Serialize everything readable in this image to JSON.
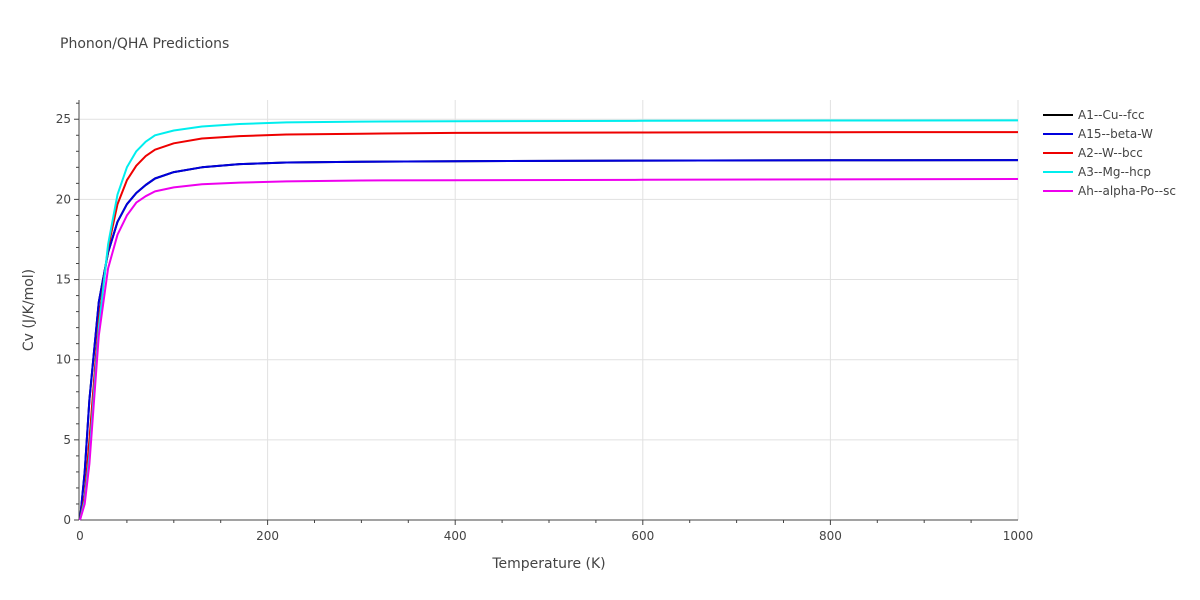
{
  "chart_data": {
    "type": "line",
    "title": "Phonon/QHA Predictions",
    "xlabel": "Temperature (K)",
    "ylabel": "Cv (J/K/mol)",
    "xlim": [
      0,
      1000
    ],
    "ylim": [
      0,
      26.2
    ],
    "xticks": [
      0,
      200,
      400,
      600,
      800,
      1000
    ],
    "yticks": [
      0,
      5,
      10,
      15,
      20,
      25
    ],
    "grid": true,
    "legend_position": "top-right",
    "series": [
      {
        "name": "A1--Cu--fcc",
        "color": "#000000",
        "x": [
          0,
          5,
          10,
          20,
          30,
          40,
          50,
          60,
          70,
          80,
          100,
          130,
          170,
          220,
          300,
          400,
          600,
          800,
          1000
        ],
        "y": [
          0,
          3.0,
          7.5,
          13.6,
          16.7,
          18.6,
          19.7,
          20.4,
          20.9,
          21.3,
          21.7,
          22.0,
          22.2,
          22.3,
          22.35,
          22.38,
          22.42,
          22.44,
          22.45
        ]
      },
      {
        "name": "A15--beta-W",
        "color": "#0000dd",
        "x": [
          0,
          5,
          10,
          20,
          30,
          40,
          50,
          60,
          70,
          80,
          100,
          130,
          170,
          220,
          300,
          400,
          600,
          800,
          1000
        ],
        "y": [
          0,
          3.0,
          7.5,
          13.6,
          16.7,
          18.6,
          19.7,
          20.4,
          20.9,
          21.3,
          21.7,
          22.0,
          22.2,
          22.3,
          22.35,
          22.38,
          22.42,
          22.44,
          22.45
        ]
      },
      {
        "name": "A2--W--bcc",
        "color": "#ee0000",
        "x": [
          0,
          5,
          10,
          20,
          30,
          40,
          50,
          60,
          70,
          80,
          100,
          130,
          170,
          220,
          300,
          400,
          600,
          800,
          1000
        ],
        "y": [
          0,
          1.5,
          5.0,
          12.5,
          17.0,
          19.7,
          21.2,
          22.1,
          22.7,
          23.1,
          23.5,
          23.8,
          23.95,
          24.05,
          24.1,
          24.15,
          24.17,
          24.19,
          24.2
        ]
      },
      {
        "name": "A3--Mg--hcp",
        "color": "#00eeee",
        "x": [
          0,
          5,
          10,
          20,
          30,
          40,
          50,
          60,
          70,
          80,
          100,
          130,
          170,
          220,
          300,
          400,
          600,
          800,
          1000
        ],
        "y": [
          0,
          1.2,
          4.0,
          12.0,
          17.2,
          20.3,
          22.0,
          23.0,
          23.6,
          24.0,
          24.3,
          24.55,
          24.7,
          24.8,
          24.85,
          24.88,
          24.9,
          24.92,
          24.93
        ]
      },
      {
        "name": "Ah--alpha-Po--sc",
        "color": "#ee00ee",
        "x": [
          0,
          5,
          10,
          20,
          30,
          40,
          50,
          60,
          70,
          80,
          100,
          130,
          170,
          220,
          300,
          400,
          600,
          800,
          1000
        ],
        "y": [
          0,
          1.0,
          3.5,
          11.5,
          15.7,
          17.8,
          19.0,
          19.8,
          20.2,
          20.5,
          20.75,
          20.95,
          21.05,
          21.12,
          21.18,
          21.2,
          21.22,
          21.25,
          21.27
        ]
      }
    ]
  }
}
